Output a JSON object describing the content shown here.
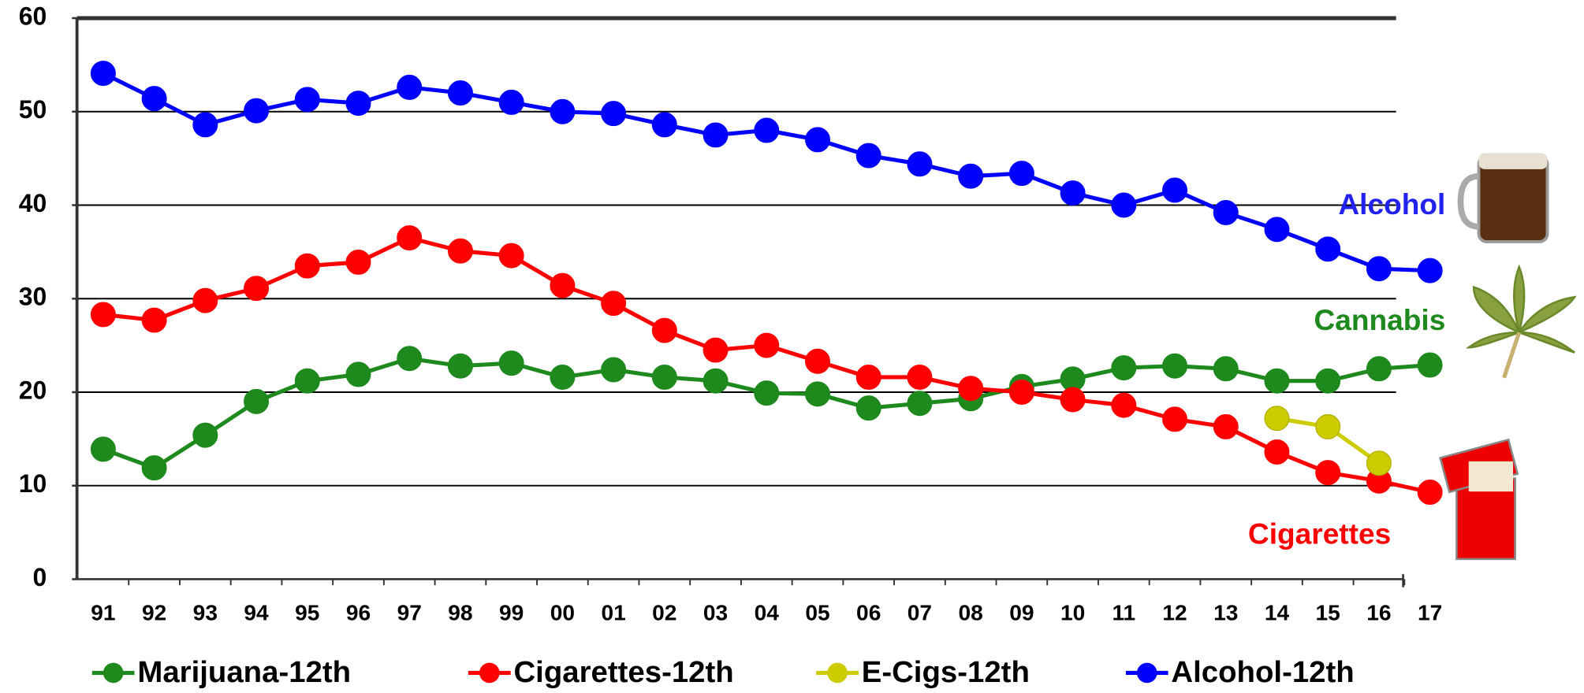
{
  "chart_data": {
    "type": "line",
    "categories": [
      "91",
      "92",
      "93",
      "94",
      "95",
      "96",
      "97",
      "98",
      "99",
      "00",
      "01",
      "02",
      "03",
      "04",
      "05",
      "06",
      "07",
      "08",
      "09",
      "10",
      "11",
      "12",
      "13",
      "14",
      "15",
      "16",
      "17"
    ],
    "ylim": [
      0,
      60
    ],
    "yticks": [
      0,
      10,
      20,
      30,
      40,
      50,
      60
    ],
    "grid": true,
    "series": [
      {
        "name": "Marijuana-12th",
        "color": "#1e8a1e",
        "values": [
          13.9,
          11.9,
          15.4,
          19.0,
          21.2,
          21.9,
          23.6,
          22.8,
          23.1,
          21.6,
          22.4,
          21.6,
          21.2,
          19.9,
          19.8,
          18.3,
          18.8,
          19.3,
          20.6,
          21.4,
          22.6,
          22.8,
          22.5,
          21.2,
          21.2,
          22.5,
          22.9
        ]
      },
      {
        "name": "Cigarettes-12th",
        "color": "#ff0000",
        "values": [
          28.3,
          27.7,
          29.8,
          31.1,
          33.5,
          33.9,
          36.5,
          35.1,
          34.6,
          31.4,
          29.5,
          26.6,
          24.5,
          25.0,
          23.3,
          21.6,
          21.6,
          20.4,
          20.0,
          19.2,
          18.6,
          17.1,
          16.3,
          13.6,
          11.4,
          10.5,
          9.3
        ]
      },
      {
        "name": "E-Cigs-12th",
        "color": "#cccc00",
        "values": [
          null,
          null,
          null,
          null,
          null,
          null,
          null,
          null,
          null,
          null,
          null,
          null,
          null,
          null,
          null,
          null,
          null,
          null,
          null,
          null,
          null,
          null,
          null,
          17.2,
          16.3,
          12.4,
          null
        ]
      },
      {
        "name": "Alcohol-12th",
        "color": "#0000ff",
        "values": [
          54.1,
          51.4,
          48.6,
          50.1,
          51.3,
          50.9,
          52.6,
          52.0,
          51.0,
          50.0,
          49.8,
          48.6,
          47.5,
          48.0,
          47.0,
          45.3,
          44.4,
          43.1,
          43.4,
          41.3,
          40.0,
          41.6,
          39.2,
          37.4,
          35.3,
          33.2,
          33.0
        ]
      }
    ],
    "annotations": [
      {
        "text": "Alcohol",
        "color": "#2222ee"
      },
      {
        "text": "Cannabis",
        "color": "#1e8a1e"
      },
      {
        "text": "Cigarettes",
        "color": "#ff0000"
      }
    ]
  }
}
